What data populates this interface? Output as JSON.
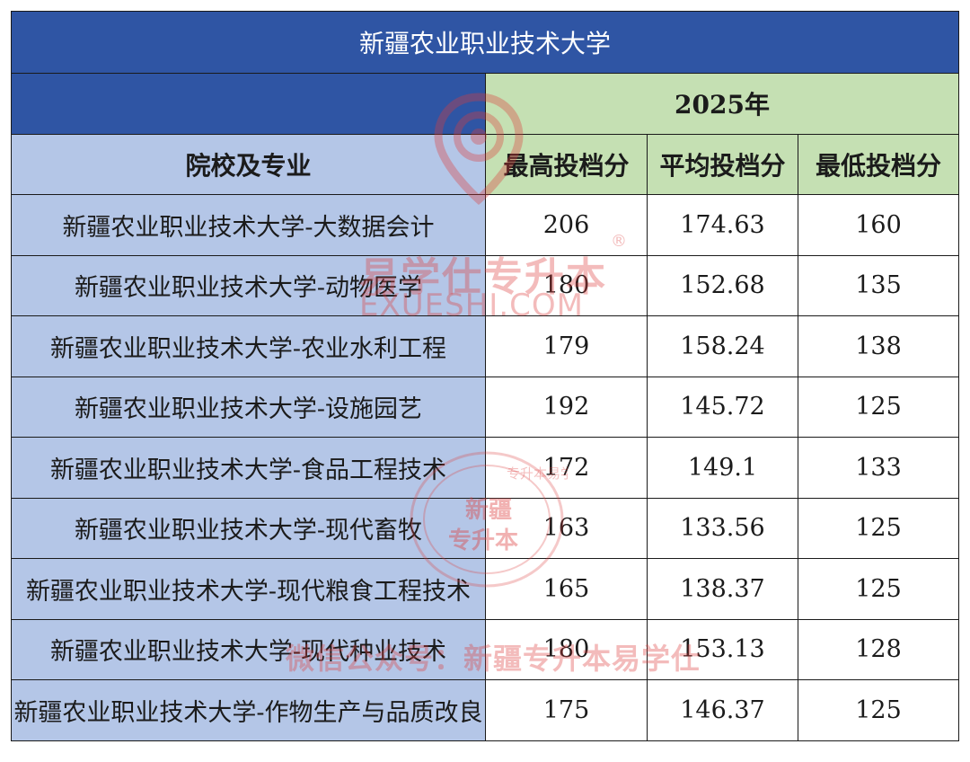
{
  "table": {
    "title": "新疆农业职业技术大学",
    "year": "2025年",
    "headers": {
      "major": "院校及专业",
      "max": "最高投档分",
      "avg": "平均投档分",
      "min": "最低投档分"
    },
    "rows": [
      {
        "name": "新疆农业职业技术大学-大数据会计",
        "max": "206",
        "avg": "174.63",
        "min": "160"
      },
      {
        "name": "新疆农业职业技术大学-动物医学",
        "max": "180",
        "avg": "152.68",
        "min": "135"
      },
      {
        "name": "新疆农业职业技术大学-农业水利工程",
        "max": "179",
        "avg": "158.24",
        "min": "138"
      },
      {
        "name": "新疆农业职业技术大学-设施园艺",
        "max": "192",
        "avg": "145.72",
        "min": "125"
      },
      {
        "name": "新疆农业职业技术大学-食品工程技术",
        "max": "172",
        "avg": "149.1",
        "min": "133"
      },
      {
        "name": "新疆农业职业技术大学-现代畜牧",
        "max": "163",
        "avg": "133.56",
        "min": "125"
      },
      {
        "name": "新疆农业职业技术大学-现代粮食工程技术",
        "max": "165",
        "avg": "138.37",
        "min": "125"
      },
      {
        "name": "新疆农业职业技术大学-现代种业技术",
        "max": "180",
        "avg": "153.13",
        "min": "128"
      },
      {
        "name": "新疆农业职业技术大学-作物生产与品质改良",
        "max": "175",
        "avg": "146.37",
        "min": "125"
      }
    ]
  },
  "watermarks": {
    "brand_cn": "易学仕专升本",
    "reg_mark": "®",
    "brand_en": "EXUESHI.COM",
    "seal_line1": "新疆",
    "seal_line2": "专升本",
    "seal_ring": "专升本易学仕",
    "bottom_text": "微信公众号：新疆专升本易学仕"
  },
  "colors": {
    "title_bg": "#2f55a4",
    "name_col_bg": "#b4c6e7",
    "score_head_bg": "#c5e0b3",
    "watermark": "#dc3c3c"
  }
}
